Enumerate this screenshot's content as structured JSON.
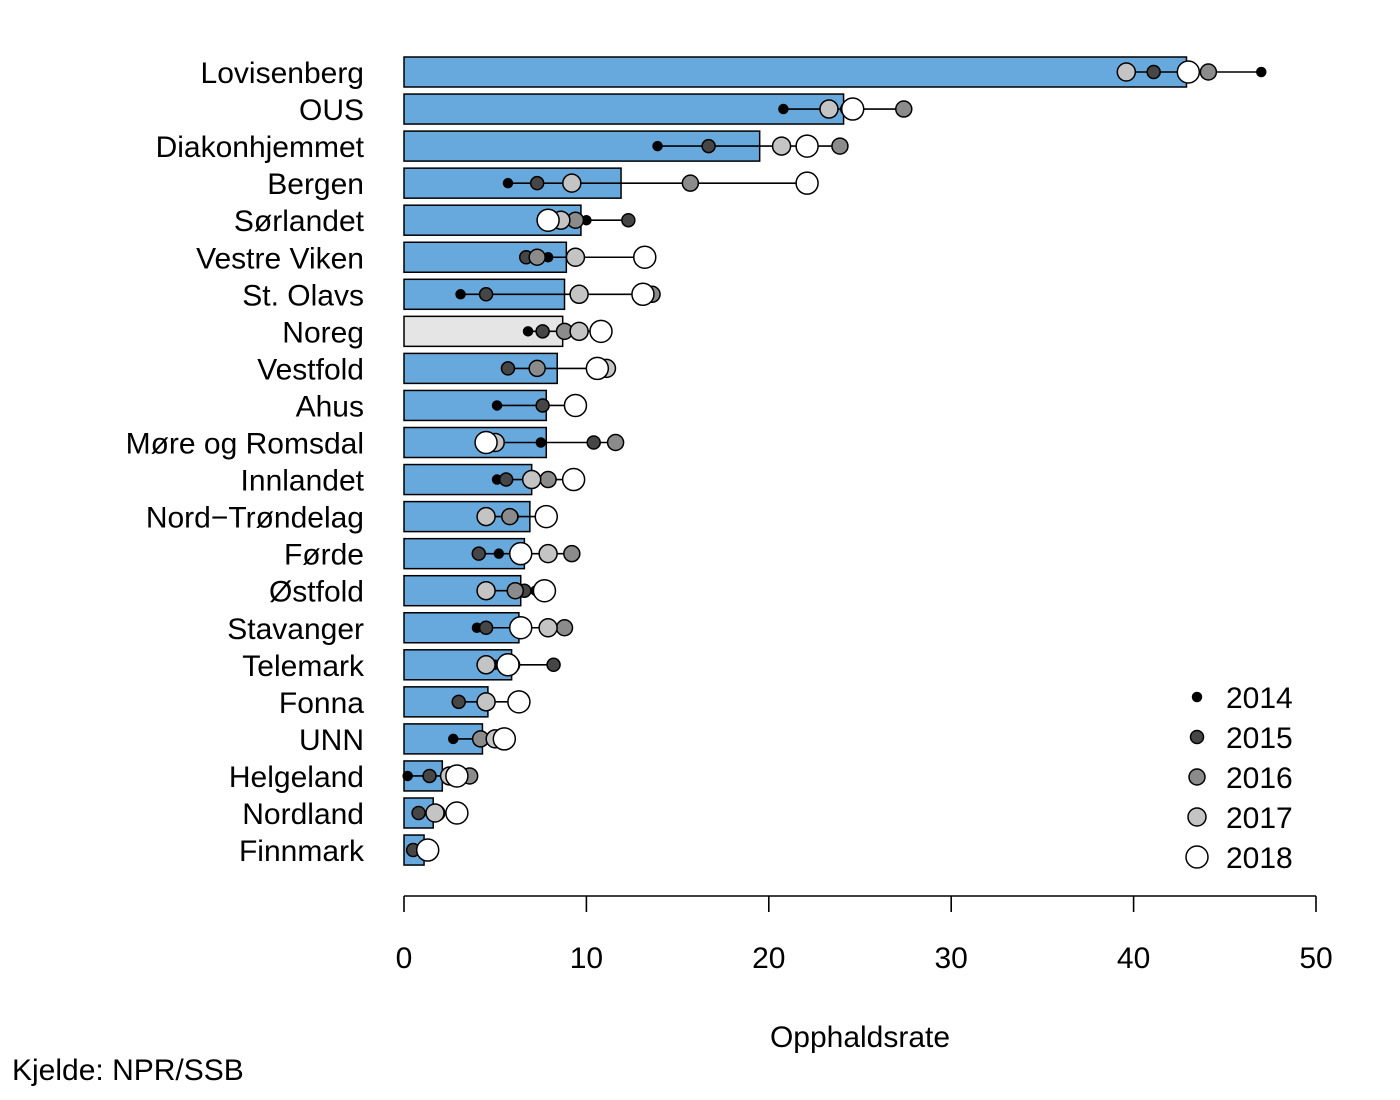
{
  "source_note": "Kjelde: NPR/SSB",
  "chart_data": {
    "type": "bar",
    "orientation": "horizontal",
    "xlabel": "Opphaldsrate",
    "xlim": [
      0,
      50
    ],
    "xticks": [
      0,
      10,
      20,
      30,
      40,
      50
    ],
    "grid": false,
    "legend_position": "bottom-right",
    "colors": {
      "bar": "#67a9dd",
      "national_bar": "#e5e5e5",
      "border": "#000000"
    },
    "categories": [
      "Lovisenberg",
      "OUS",
      "Diakonhjemmet",
      "Bergen",
      "Sørlandet",
      "Vestre Viken",
      "St. Olavs",
      "Noreg",
      "Vestfold",
      "Ahus",
      "Møre og Romsdal",
      "Innlandet",
      "Nord−Trøndelag",
      "Førde",
      "Østfold",
      "Stavanger",
      "Telemark",
      "Fonna",
      "UNN",
      "Helgeland",
      "Nordland",
      "Finnmark"
    ],
    "highlight_category": "Noreg",
    "bar_values": [
      42.9,
      24.1,
      19.5,
      11.9,
      9.7,
      8.9,
      8.8,
      8.7,
      8.4,
      7.8,
      7.8,
      7.0,
      6.9,
      6.6,
      6.4,
      6.3,
      5.9,
      4.6,
      4.3,
      2.1,
      1.6,
      1.1
    ],
    "series": [
      {
        "name": "2014",
        "fill": "#000000",
        "size": 4.5,
        "values": [
          47.0,
          20.8,
          13.9,
          5.7,
          10.0,
          7.9,
          3.1,
          6.8,
          7.3,
          5.1,
          7.5,
          5.1,
          6.0,
          5.2,
          7.2,
          4.0,
          5.0,
          3.0,
          2.7,
          0.2,
          1.6,
          1.5
        ]
      },
      {
        "name": "2015",
        "fill": "#464646",
        "size": 6.5,
        "values": [
          41.1,
          24.3,
          16.7,
          7.3,
          12.3,
          6.7,
          4.5,
          7.6,
          5.7,
          7.6,
          10.4,
          5.6,
          5.9,
          4.1,
          6.6,
          4.5,
          8.2,
          3.0,
          4.3,
          1.4,
          0.8,
          0.5
        ]
      },
      {
        "name": "2016",
        "fill": "#8b8b8b",
        "size": 8,
        "values": [
          44.1,
          27.4,
          23.9,
          15.7,
          9.4,
          7.3,
          13.6,
          8.8,
          7.3,
          9.3,
          11.6,
          7.9,
          5.8,
          9.2,
          6.1,
          8.8,
          5.9,
          6.3,
          4.2,
          3.6,
          1.8,
          1.3
        ]
      },
      {
        "name": "2017",
        "fill": "#c4c4c4",
        "size": 9,
        "values": [
          39.6,
          23.3,
          20.7,
          9.2,
          8.6,
          9.4,
          9.6,
          9.6,
          11.1,
          9.4,
          5.0,
          7.0,
          4.5,
          7.9,
          4.5,
          7.9,
          4.5,
          4.5,
          5.0,
          2.5,
          1.7,
          1.2
        ]
      },
      {
        "name": "2018",
        "fill": "#ffffff",
        "size": 11,
        "values": [
          43.0,
          24.6,
          22.1,
          22.1,
          7.9,
          13.2,
          13.1,
          10.8,
          10.6,
          9.4,
          4.5,
          9.3,
          7.8,
          6.4,
          7.7,
          6.4,
          5.7,
          6.3,
          5.5,
          2.9,
          2.9,
          1.3
        ]
      }
    ]
  }
}
